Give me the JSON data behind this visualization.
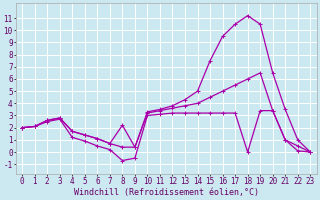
{
  "background_color": "#cce8f0",
  "grid_color": "#ffffff",
  "line_color": "#aa00aa",
  "xlabel": "Windchill (Refroidissement éolien,°C)",
  "xlabel_fontsize": 6.0,
  "tick_fontsize": 5.5,
  "xlim": [
    -0.5,
    23.5
  ],
  "ylim": [
    -1.8,
    12.2
  ],
  "xticks": [
    0,
    1,
    2,
    3,
    4,
    5,
    6,
    7,
    8,
    9,
    10,
    11,
    12,
    13,
    14,
    15,
    16,
    17,
    18,
    19,
    20,
    21,
    22,
    23
  ],
  "yticks": [
    -1,
    0,
    1,
    2,
    3,
    4,
    5,
    6,
    7,
    8,
    9,
    10,
    11
  ],
  "line1_x": [
    0,
    1,
    2,
    3,
    4,
    5,
    6,
    7,
    8,
    9,
    10,
    11,
    12,
    13,
    14,
    15,
    16,
    17,
    18,
    19,
    20,
    21,
    22,
    23
  ],
  "line1_y": [
    2.0,
    2.1,
    2.6,
    2.8,
    1.7,
    1.4,
    1.1,
    0.7,
    2.2,
    0.4,
    3.3,
    3.5,
    3.8,
    4.3,
    5.0,
    7.5,
    9.5,
    10.5,
    11.2,
    10.5,
    6.5,
    3.5,
    1.0,
    0.0
  ],
  "line2_x": [
    0,
    1,
    2,
    3,
    4,
    5,
    6,
    7,
    8,
    9,
    10,
    11,
    12,
    13,
    14,
    15,
    16,
    17,
    18,
    19,
    20,
    21,
    22,
    23
  ],
  "line2_y": [
    2.0,
    2.1,
    2.6,
    2.8,
    1.7,
    1.4,
    1.1,
    0.7,
    0.4,
    0.4,
    3.2,
    3.4,
    3.6,
    3.8,
    4.0,
    4.5,
    5.0,
    5.5,
    6.0,
    6.5,
    3.4,
    1.0,
    0.5,
    0.0
  ],
  "line3_x": [
    0,
    1,
    2,
    3,
    4,
    5,
    6,
    7,
    8,
    9,
    10,
    11,
    12,
    13,
    14,
    15,
    16,
    17,
    18,
    19,
    20,
    21,
    22,
    23
  ],
  "line3_y": [
    2.0,
    2.1,
    2.5,
    2.7,
    1.2,
    0.9,
    0.5,
    0.2,
    -0.7,
    -0.5,
    3.0,
    3.1,
    3.2,
    3.2,
    3.2,
    3.2,
    3.2,
    3.2,
    0.0,
    3.4,
    3.4,
    1.0,
    0.1,
    0.0
  ]
}
